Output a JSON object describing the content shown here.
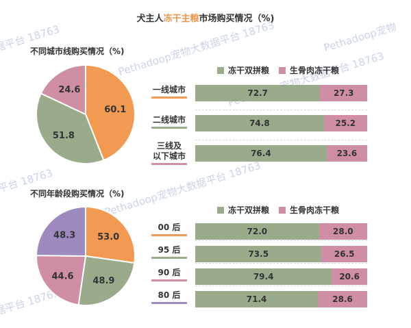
{
  "title": {
    "pre": "犬主人",
    "highlight": "冻干主粮",
    "post": "市场购买情况（%)"
  },
  "watermarks": [
    "据平台 18763",
    "Pethadoop宠物大数据平台 18763",
    "Pethadoop宠物大数据平台 18763",
    "Pethadoop宠物",
    "据平台 18763",
    "Pethadoop宠物大数据平台 18763",
    "据平台 18763"
  ],
  "colors": {
    "orange": "#f39a52",
    "green": "#9aab8c",
    "pink": "#cf8ea3",
    "purple": "#9d8bbf",
    "blue": "#8aa0d0",
    "highlight": "#f0954b"
  },
  "legend": [
    {
      "label": "冻干双拼粮",
      "color": "#9aab8c"
    },
    {
      "label": "生骨肉冻干粮",
      "color": "#cf8ea3"
    }
  ],
  "chart_data": [
    {
      "type": "pie",
      "title": "不同城市线购买情况（%)",
      "slices": [
        {
          "value": 60.1,
          "color": "#f39a52"
        },
        {
          "value": 51.8,
          "color": "#9aab8c"
        },
        {
          "value": 24.6,
          "color": "#cf8ea3"
        }
      ]
    },
    {
      "type": "bar",
      "stacked": true,
      "orientation": "horizontal",
      "categories": [
        "一线城市",
        "二线城市",
        "三线及\n以下城市"
      ],
      "category_colors": [
        "#f39a52",
        "#9aab8c",
        "#cf8ea3"
      ],
      "series": [
        {
          "name": "冻干双拼粮",
          "values": [
            72.7,
            74.8,
            76.4
          ],
          "color": "#9aab8c"
        },
        {
          "name": "生骨肉冻干粮",
          "values": [
            27.3,
            25.2,
            23.6
          ],
          "color": "#cf8ea3"
        }
      ],
      "xlim": [
        0,
        100
      ]
    },
    {
      "type": "pie",
      "title": "不同年龄段购买情况（%)",
      "slices": [
        {
          "value": 53.0,
          "color": "#f39a52"
        },
        {
          "value": 48.9,
          "color": "#9aab8c"
        },
        {
          "value": 44.6,
          "color": "#cf8ea3"
        },
        {
          "value": 48.3,
          "color": "#9d8bbf"
        }
      ]
    },
    {
      "type": "bar",
      "stacked": true,
      "orientation": "horizontal",
      "categories": [
        "00 后",
        "95 后",
        "90 后",
        "80 后"
      ],
      "category_colors": [
        "#f39a52",
        "#9aab8c",
        "#cf8ea3",
        "#9d8bbf"
      ],
      "series": [
        {
          "name": "冻干双拼粮",
          "values": [
            72.0,
            73.5,
            79.4,
            71.4
          ],
          "color": "#9aab8c"
        },
        {
          "name": "生骨肉冻干粮",
          "values": [
            28.0,
            26.5,
            20.6,
            28.6
          ],
          "color": "#cf8ea3"
        }
      ],
      "xlim": [
        0,
        100
      ]
    }
  ]
}
